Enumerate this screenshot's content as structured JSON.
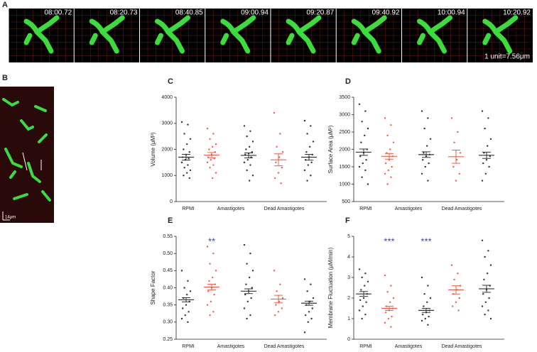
{
  "panel_a": {
    "label": "A",
    "timestamps": [
      "08:00.72",
      "08:20.73",
      "08:40.85",
      "09:00.94",
      "09:20.87",
      "09:40.92",
      "10:00.94",
      "10:20.92"
    ],
    "scale_note": "1 unit=7.56μm"
  },
  "panel_b": {
    "label": "B",
    "scale": "14μm"
  },
  "chart_data": [
    {
      "type": "dotplot",
      "panel": "C",
      "ylabel": "Volume (μM³)",
      "xlabels": [
        "RPMI",
        "Amastigotes",
        "Dead Amastigotes"
      ],
      "ylim": [
        0,
        4000
      ],
      "yticks": [
        0,
        1000,
        2000,
        3000,
        4000
      ],
      "groups": [
        {
          "color": "#333333",
          "mean": 1700,
          "sem": 110,
          "points": [
            3050,
            2950,
            2600,
            2400,
            2200,
            2000,
            1900,
            1800,
            1700,
            1650,
            1600,
            1500,
            1400,
            1300,
            1200,
            1100,
            1000,
            900
          ]
        },
        {
          "color": "#e8604c",
          "mean": 1780,
          "sem": 100,
          "points": [
            2800,
            2600,
            2400,
            2200,
            2100,
            2000,
            1900,
            1800,
            1700,
            1650,
            1600,
            1500,
            1400,
            1300,
            1100,
            900
          ]
        },
        {
          "color": "#333333",
          "mean": 1770,
          "sem": 95,
          "points": [
            2900,
            2700,
            2500,
            2300,
            2100,
            2000,
            1900,
            1850,
            1800,
            1700,
            1600,
            1500,
            1400,
            1200,
            1000,
            800
          ]
        },
        {
          "color": "#e8604c",
          "mean": 1600,
          "sem": 230,
          "points": [
            3400,
            2600,
            2100,
            1900,
            1700,
            1500,
            1300,
            1100,
            900,
            700
          ]
        },
        {
          "color": "#333333",
          "mean": 1700,
          "sem": 110,
          "points": [
            3100,
            2900,
            2600,
            2300,
            2100,
            1900,
            1800,
            1700,
            1600,
            1500,
            1400,
            1200,
            1000,
            800
          ]
        }
      ]
    },
    {
      "type": "dotplot",
      "panel": "D",
      "ylabel": "Surface Area (μM²)",
      "xlabels": [
        "RPMI",
        "Amastigotes",
        "Dead Amastigotes"
      ],
      "ylim": [
        500,
        3500
      ],
      "yticks": [
        500,
        1000,
        1500,
        2000,
        2500,
        3000,
        3500
      ],
      "groups": [
        {
          "color": "#333333",
          "mean": 1920,
          "sem": 90,
          "points": [
            3300,
            3100,
            2800,
            2600,
            2400,
            2200,
            2000,
            1900,
            1800,
            1700,
            1600,
            1500,
            1400,
            1200,
            1000
          ]
        },
        {
          "color": "#e8604c",
          "mean": 1800,
          "sem": 80,
          "points": [
            2900,
            2700,
            2400,
            2200,
            2000,
            1900,
            1800,
            1700,
            1600,
            1500,
            1400,
            1300,
            1200,
            1000
          ]
        },
        {
          "color": "#333333",
          "mean": 1850,
          "sem": 80,
          "points": [
            3100,
            2900,
            2600,
            2300,
            2100,
            1900,
            1850,
            1800,
            1700,
            1600,
            1500,
            1300,
            1100
          ]
        },
        {
          "color": "#e8604c",
          "mean": 1790,
          "sem": 190,
          "points": [
            2900,
            2500,
            2200,
            1900,
            1700,
            1500,
            1300,
            1100
          ]
        },
        {
          "color": "#333333",
          "mean": 1830,
          "sem": 90,
          "points": [
            3100,
            2900,
            2600,
            2300,
            2100,
            1900,
            1800,
            1700,
            1600,
            1500,
            1300,
            1100
          ]
        }
      ]
    },
    {
      "type": "dotplot",
      "panel": "E",
      "ylabel": "Shape Factor",
      "xlabels": [
        "RPMI",
        "Amastigotes",
        "Dead Amastigotes"
      ],
      "ylim": [
        0.25,
        0.55
      ],
      "yticks": [
        {
          "value": 0.25,
          "label": "0.25"
        },
        {
          "value": 0.3,
          "label": "0.30"
        },
        {
          "value": 0.35,
          "label": "0.35"
        },
        {
          "value": 0.4,
          "label": "0.40"
        },
        {
          "value": 0.45,
          "label": "0.45"
        },
        {
          "value": 0.5,
          "label": "0.50"
        },
        {
          "value": 0.55,
          "label": "0.55"
        }
      ],
      "groups": [
        {
          "color": "#333333",
          "mean": 0.365,
          "sem": 0.006,
          "points": [
            0.45,
            0.42,
            0.4,
            0.39,
            0.38,
            0.37,
            0.36,
            0.35,
            0.34,
            0.33,
            0.32,
            0.31,
            0.3
          ]
        },
        {
          "color": "#e8604c",
          "mean": 0.402,
          "sem": 0.008,
          "annotation": "**",
          "points": [
            0.52,
            0.5,
            0.47,
            0.45,
            0.43,
            0.42,
            0.41,
            0.4,
            0.39,
            0.38,
            0.36,
            0.35,
            0.33,
            0.32
          ]
        },
        {
          "color": "#333333",
          "mean": 0.39,
          "sem": 0.007,
          "points": [
            0.525,
            0.5,
            0.47,
            0.45,
            0.43,
            0.41,
            0.4,
            0.39,
            0.38,
            0.37,
            0.36,
            0.34,
            0.32,
            0.31
          ]
        },
        {
          "color": "#e8604c",
          "mean": 0.367,
          "sem": 0.011,
          "points": [
            0.45,
            0.41,
            0.39,
            0.37,
            0.36,
            0.35,
            0.34,
            0.33,
            0.32
          ]
        },
        {
          "color": "#333333",
          "mean": 0.355,
          "sem": 0.006,
          "points": [
            0.425,
            0.41,
            0.39,
            0.37,
            0.36,
            0.35,
            0.34,
            0.33,
            0.32,
            0.31,
            0.3,
            0.27
          ]
        }
      ]
    },
    {
      "type": "dotplot",
      "panel": "F",
      "ylabel": "Membrane Fluctuation (μM/min)",
      "xlabels": [
        "RPMI",
        "Amastigotes",
        "Dead Amastigotes"
      ],
      "ylim": [
        0,
        5
      ],
      "yticks": [
        0,
        1,
        2,
        3,
        4,
        5
      ],
      "groups": [
        {
          "color": "#333333",
          "mean": 2.2,
          "sem": 0.12,
          "points": [
            3.4,
            3.2,
            3.0,
            2.8,
            2.6,
            2.4,
            2.2,
            2.0,
            1.9,
            1.8,
            1.6,
            1.4,
            1.2,
            1.0
          ]
        },
        {
          "color": "#e8604c",
          "mean": 1.5,
          "sem": 0.1,
          "annotation": "***",
          "points": [
            3.1,
            2.6,
            2.3,
            2.0,
            1.8,
            1.6,
            1.5,
            1.4,
            1.3,
            1.1,
            1.0,
            0.8,
            0.6
          ]
        },
        {
          "color": "#333333",
          "mean": 1.4,
          "sem": 0.1,
          "annotation": "***",
          "points": [
            3.0,
            2.6,
            2.2,
            2.0,
            1.8,
            1.6,
            1.4,
            1.3,
            1.2,
            1.1,
            1.0,
            0.9,
            0.7
          ]
        },
        {
          "color": "#e8604c",
          "mean": 2.4,
          "sem": 0.2,
          "points": [
            3.6,
            3.2,
            2.9,
            2.6,
            2.4,
            2.2,
            2.0,
            1.8,
            1.6,
            1.4
          ]
        },
        {
          "color": "#333333",
          "mean": 2.45,
          "sem": 0.17,
          "points": [
            4.8,
            4.3,
            4.0,
            3.6,
            3.2,
            2.9,
            2.6,
            2.4,
            2.2,
            2.0,
            1.8,
            1.6,
            1.4,
            1.2,
            1.0
          ]
        }
      ]
    }
  ]
}
